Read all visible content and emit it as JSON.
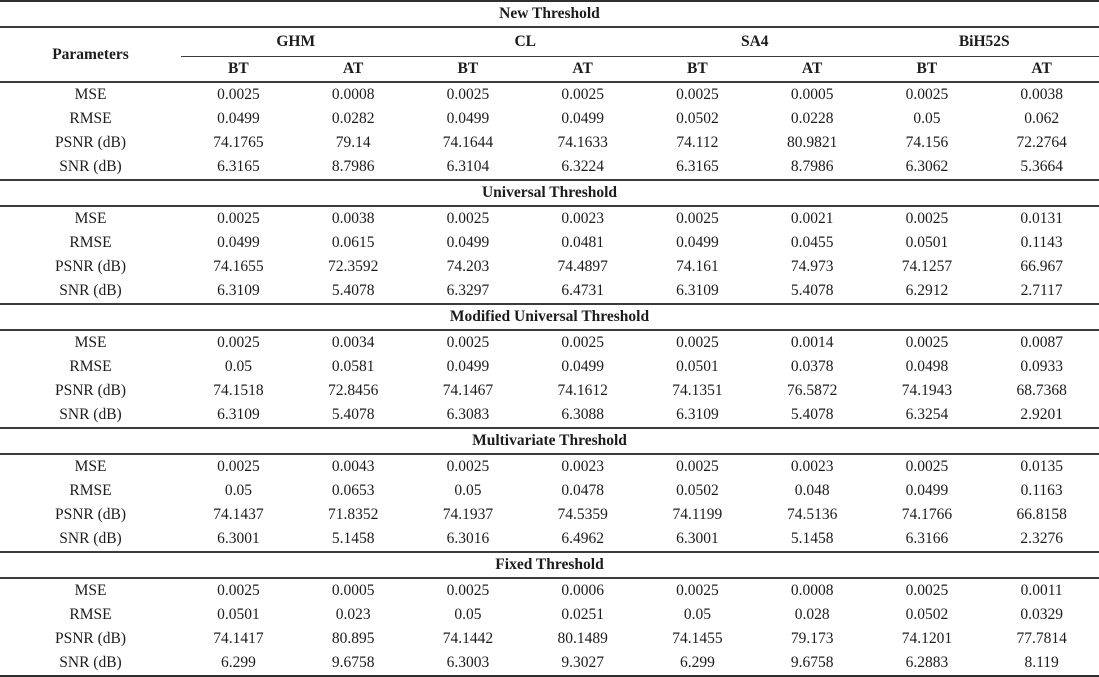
{
  "page": {
    "background": "#ffffff",
    "text_color": "#1c1c1c",
    "line_color": "#3c3c3c"
  },
  "table": {
    "header": {
      "parameters_label": "Parameters",
      "groups": [
        "GHM",
        "CL",
        "SA4",
        "BiH52S"
      ],
      "subcolumns": [
        "BT",
        "AT"
      ]
    },
    "row_labels": [
      "MSE",
      "RMSE",
      "PSNR (dB)",
      "SNR (dB)"
    ],
    "sections": [
      {
        "title": "New Threshold",
        "rows": [
          [
            "0.0025",
            "0.0008",
            "0.0025",
            "0.0025",
            "0.0025",
            "0.0005",
            "0.0025",
            "0.0038"
          ],
          [
            "0.0499",
            "0.0282",
            "0.0499",
            "0.0499",
            "0.0502",
            "0.0228",
            "0.05",
            "0.062"
          ],
          [
            "74.1765",
            "79.14",
            "74.1644",
            "74.1633",
            "74.112",
            "80.9821",
            "74.156",
            "72.2764"
          ],
          [
            "6.3165",
            "8.7986",
            "6.3104",
            "6.3224",
            "6.3165",
            "8.7986",
            "6.3062",
            "5.3664"
          ]
        ]
      },
      {
        "title": "Universal Threshold",
        "rows": [
          [
            "0.0025",
            "0.0038",
            "0.0025",
            "0.0023",
            "0.0025",
            "0.0021",
            "0.0025",
            "0.0131"
          ],
          [
            "0.0499",
            "0.0615",
            "0.0499",
            "0.0481",
            "0.0499",
            "0.0455",
            "0.0501",
            "0.1143"
          ],
          [
            "74.1655",
            "72.3592",
            "74.203",
            "74.4897",
            "74.161",
            "74.973",
            "74.1257",
            "66.967"
          ],
          [
            "6.3109",
            "5.4078",
            "6.3297",
            "6.4731",
            "6.3109",
            "5.4078",
            "6.2912",
            "2.7117"
          ]
        ]
      },
      {
        "title": "Modified Universal Threshold",
        "rows": [
          [
            "0.0025",
            "0.0034",
            "0.0025",
            "0.0025",
            "0.0025",
            "0.0014",
            "0.0025",
            "0.0087"
          ],
          [
            "0.05",
            "0.0581",
            "0.0499",
            "0.0499",
            "0.0501",
            "0.0378",
            "0.0498",
            "0.0933"
          ],
          [
            "74.1518",
            "72.8456",
            "74.1467",
            "74.1612",
            "74.1351",
            "76.5872",
            "74.1943",
            "68.7368"
          ],
          [
            "6.3109",
            "5.4078",
            "6.3083",
            "6.3088",
            "6.3109",
            "5.4078",
            "6.3254",
            "2.9201"
          ]
        ]
      },
      {
        "title": "Multivariate Threshold",
        "rows": [
          [
            "0.0025",
            "0.0043",
            "0.0025",
            "0.0023",
            "0.0025",
            "0.0023",
            "0.0025",
            "0.0135"
          ],
          [
            "0.05",
            "0.0653",
            "0.05",
            "0.0478",
            "0.0502",
            "0.048",
            "0.0499",
            "0.1163"
          ],
          [
            "74.1437",
            "71.8352",
            "74.1937",
            "74.5359",
            "74.1199",
            "74.5136",
            "74.1766",
            "66.8158"
          ],
          [
            "6.3001",
            "5.1458",
            "6.3016",
            "6.4962",
            "6.3001",
            "5.1458",
            "6.3166",
            "2.3276"
          ]
        ]
      },
      {
        "title": "Fixed Threshold",
        "rows": [
          [
            "0.0025",
            "0.0005",
            "0.0025",
            "0.0006",
            "0.0025",
            "0.0008",
            "0.0025",
            "0.0011"
          ],
          [
            "0.0501",
            "0.023",
            "0.05",
            "0.0251",
            "0.05",
            "0.028",
            "0.0502",
            "0.0329"
          ],
          [
            "74.1417",
            "80.895",
            "74.1442",
            "80.1489",
            "74.1455",
            "79.173",
            "74.1201",
            "77.7814"
          ],
          [
            "6.299",
            "9.6758",
            "6.3003",
            "9.3027",
            "6.299",
            "9.6758",
            "6.2883",
            "8.119"
          ]
        ]
      }
    ]
  }
}
